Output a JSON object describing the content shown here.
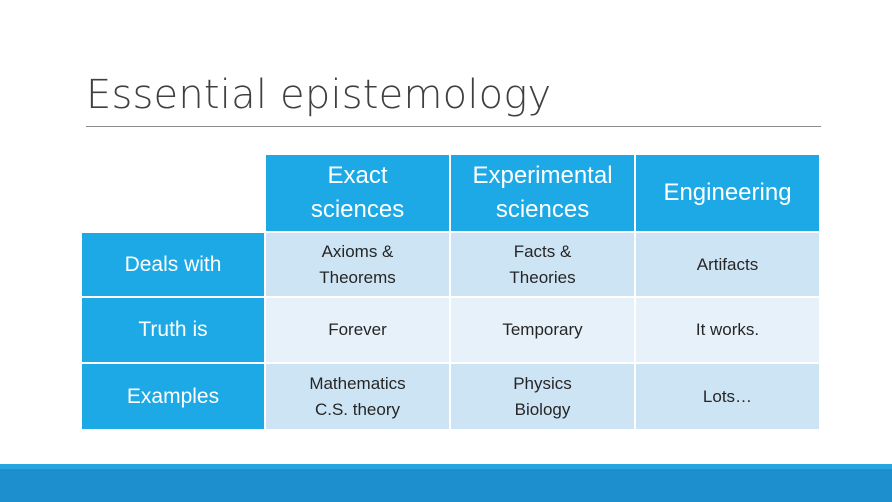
{
  "slide": {
    "title": "Essential epistemology"
  },
  "table": {
    "columns": [
      {
        "line1": "Exact",
        "line2": "sciences"
      },
      {
        "line1": "Experimental",
        "line2": "sciences"
      },
      {
        "line1": "Engineering",
        "line2": ""
      }
    ],
    "rows": [
      {
        "label": "Deals with",
        "cells": [
          {
            "line1": "Axioms &",
            "line2": "Theorems"
          },
          {
            "line1": "Facts &",
            "line2": "Theories"
          },
          {
            "line1": "Artifacts",
            "line2": ""
          }
        ]
      },
      {
        "label": "Truth is",
        "cells": [
          {
            "line1": "Forever",
            "line2": ""
          },
          {
            "line1": "Temporary",
            "line2": ""
          },
          {
            "line1": "It works.",
            "line2": ""
          }
        ]
      },
      {
        "label": "Examples",
        "cells": [
          {
            "line1": "Mathematics",
            "line2": "C.S. theory"
          },
          {
            "line1": "Physics",
            "line2": "Biology"
          },
          {
            "line1": "Lots…",
            "line2": ""
          }
        ]
      }
    ]
  },
  "colors": {
    "header": "#1ca9e6",
    "row_dark": "#cde4f5",
    "row_light": "#e6f1fa",
    "footer": "#1d8fcf"
  }
}
